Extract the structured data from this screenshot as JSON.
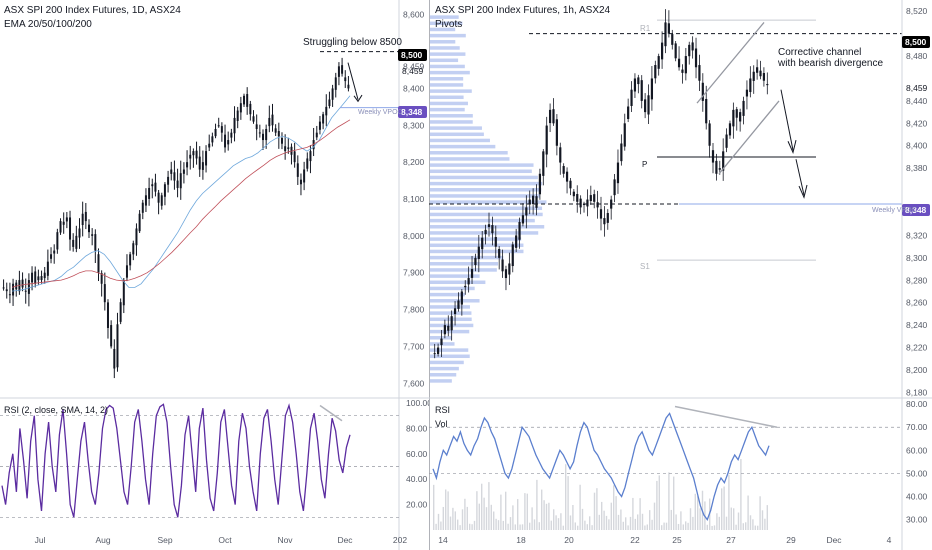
{
  "left_chart": {
    "title": "ASX SPI 200 Index Futures, 1D, ASX24",
    "indicator": "EMA 20/50/100/200",
    "annotation": "Struggling below 8500",
    "rsi_label": "RSI (2, close, SMA, 14, 2)",
    "price_badge": "8,500",
    "price_label_2": "8,459",
    "vpoc_label": "Weekly VPOC",
    "vpoc_badge": "8,348"
  },
  "right_chart": {
    "title": "ASX SPI 200 Index Futures, 1h, ASX24",
    "indicator": "Pivots",
    "annotation_line1": "Corrective channel",
    "annotation_line2": "with bearish divergence",
    "rsi_label": "RSI",
    "vol_label": "Vol",
    "price_badge": "8,500",
    "price_label_2": "8,459",
    "vpoc_label": "Weekly VPOC",
    "vpoc_badge": "8,348",
    "pivot_r1": "R1",
    "pivot_p": "P",
    "pivot_s1": "S1"
  },
  "colors": {
    "up": "#131722",
    "down": "#131722",
    "rsi_left": "#5b2ca0",
    "rsi_right": "#5b7fce",
    "ema_fast": "#6fa8dc",
    "ema_slow": "#c0505a",
    "volume_profile": "#8fa8e8",
    "badge_black": "#000000",
    "badge_purple": "#6a4fc0"
  },
  "chart_data": [
    {
      "type": "candlestick",
      "title": "ASX SPI 200 Index Futures, 1D, ASX24",
      "x_ticks": [
        "Jul",
        "Aug",
        "Sep",
        "Oct",
        "Nov",
        "Dec",
        "202"
      ],
      "y_ticks": [
        8600,
        8500,
        8459,
        8400,
        8348,
        8300,
        8200,
        8100,
        8000,
        7900,
        7800,
        7700,
        7600
      ],
      "ylim": [
        7560,
        8640
      ],
      "close_path": [
        7860,
        7850,
        7840,
        7870,
        7855,
        7880,
        7860,
        7850,
        7880,
        7900,
        7870,
        7890,
        7880,
        7900,
        7930,
        7950,
        7960,
        8010,
        8040,
        8030,
        8050,
        7990,
        7970,
        8000,
        8020,
        8060,
        8040,
        8010,
        8000,
        7960,
        7900,
        7870,
        7820,
        7750,
        7700,
        7640,
        7760,
        7820,
        7880,
        7920,
        7950,
        7980,
        8020,
        8060,
        8090,
        8110,
        8130,
        8140,
        8120,
        8090,
        8110,
        8140,
        8160,
        8180,
        8150,
        8130,
        8170,
        8180,
        8200,
        8220,
        8230,
        8210,
        8180,
        8200,
        8230,
        8250,
        8270,
        8290,
        8300,
        8280,
        8240,
        8260,
        8280,
        8320,
        8340,
        8360,
        8380,
        8350,
        8330,
        8310,
        8290,
        8280,
        8260,
        8290,
        8320,
        8300,
        8280,
        8270,
        8250,
        8230,
        8240,
        8220,
        8200,
        8160,
        8140,
        8180,
        8210,
        8230,
        8260,
        8280,
        8310,
        8330,
        8350,
        8370,
        8400,
        8430,
        8460,
        8440,
        8420,
        8400
      ],
      "ema_fast": [
        7850,
        7852,
        7855,
        7860,
        7865,
        7870,
        7875,
        7880,
        7890,
        7905,
        7915,
        7930,
        7945,
        7955,
        7960,
        7950,
        7930,
        7905,
        7880,
        7860,
        7860,
        7870,
        7890,
        7910,
        7935,
        7960,
        7985,
        8010,
        8040,
        8070,
        8095,
        8115,
        8130,
        8145,
        8160,
        8175,
        8190,
        8200,
        8210,
        8215,
        8225,
        8240,
        8255,
        8265,
        8270,
        8265,
        8255,
        8240,
        8230,
        8240,
        8260,
        8290,
        8320,
        8340,
        8360,
        8380
      ],
      "ema_slow": [
        7860,
        7865,
        7868,
        7870,
        7872,
        7874,
        7876,
        7878,
        7880,
        7885,
        7892,
        7900,
        7905,
        7905,
        7900,
        7893,
        7885,
        7880,
        7878,
        7880,
        7885,
        7892,
        7900,
        7912,
        7925,
        7940,
        7955,
        7972,
        7990,
        8008,
        8025,
        8045,
        8062,
        8078,
        8095,
        8110,
        8125,
        8140,
        8155,
        8168,
        8180,
        8192,
        8205,
        8215,
        8222,
        8228,
        8232,
        8236,
        8240,
        8248,
        8258,
        8270,
        8283,
        8295,
        8305,
        8315
      ],
      "rsi": [
        35,
        20,
        45,
        60,
        30,
        80,
        55,
        25,
        70,
        90,
        40,
        15,
        60,
        85,
        50,
        30,
        75,
        95,
        60,
        20,
        10,
        40,
        70,
        85,
        55,
        30,
        20,
        45,
        80,
        95,
        98,
        96,
        80,
        55,
        30,
        20,
        50,
        85,
        95,
        70,
        40,
        20,
        60,
        90,
        97,
        99,
        85,
        50,
        20,
        10,
        35,
        75,
        90,
        60,
        30,
        80,
        96,
        55,
        25,
        15,
        45,
        85,
        95,
        65,
        35,
        20,
        70,
        92,
        80,
        50,
        30,
        15,
        60,
        88,
        95,
        70,
        40,
        20,
        55,
        90,
        98,
        85,
        60,
        30,
        15,
        45,
        80,
        92,
        70,
        40,
        25,
        60,
        88,
        78,
        55,
        45,
        65,
        75
      ],
      "rsi_levels": [
        90,
        50,
        10
      ],
      "rsi_ticks": [
        100,
        80,
        60,
        40,
        20
      ]
    },
    {
      "type": "candlestick",
      "title": "ASX SPI 200 Index Futures, 1h, ASX24",
      "x_ticks": [
        "14",
        "18",
        "20",
        "22",
        "25",
        "27",
        "29",
        "Dec",
        "4"
      ],
      "y_ticks": [
        8520,
        8500,
        8480,
        8459,
        8440,
        8420,
        8400,
        8380,
        8348,
        8320,
        8300,
        8280,
        8260,
        8240,
        8220,
        8200,
        8180
      ],
      "ylim": [
        8175,
        8530
      ],
      "close_path": [
        8215,
        8220,
        8228,
        8240,
        8235,
        8248,
        8255,
        8262,
        8270,
        8275,
        8282,
        8290,
        8300,
        8310,
        8318,
        8325,
        8330,
        8322,
        8310,
        8300,
        8288,
        8282,
        8295,
        8312,
        8320,
        8332,
        8338,
        8345,
        8352,
        8348,
        8355,
        8375,
        8395,
        8418,
        8432,
        8420,
        8400,
        8385,
        8375,
        8368,
        8362,
        8355,
        8350,
        8345,
        8348,
        8352,
        8356,
        8350,
        8345,
        8335,
        8330,
        8340,
        8352,
        8370,
        8385,
        8402,
        8420,
        8435,
        8450,
        8460,
        8455,
        8440,
        8430,
        8445,
        8460,
        8472,
        8480,
        8492,
        8510,
        8500,
        8490,
        8478,
        8470,
        8465,
        8480,
        8490,
        8485,
        8470,
        8458,
        8440,
        8420,
        8400,
        8385,
        8375,
        8380,
        8395,
        8410,
        8420,
        8432,
        8425,
        8430,
        8440,
        8450,
        8460,
        8466,
        8470,
        8462,
        8458,
        8455
      ],
      "vpoc": 8348,
      "pivots": {
        "R1": 8512,
        "P": 8390,
        "S1": 8298
      },
      "rsi": [
        52,
        48,
        55,
        60,
        58,
        62,
        66,
        64,
        68,
        63,
        60,
        58,
        62,
        65,
        70,
        74,
        72,
        68,
        65,
        60,
        55,
        50,
        48,
        52,
        58,
        64,
        70,
        68,
        66,
        62,
        58,
        55,
        52,
        50,
        48,
        52,
        56,
        60,
        58,
        55,
        52,
        55,
        62,
        68,
        72,
        70,
        65,
        60,
        58,
        55,
        52,
        50,
        48,
        45,
        42,
        40,
        44,
        50,
        56,
        62,
        66,
        68,
        64,
        60,
        58,
        62,
        66,
        70,
        74,
        76,
        72,
        68,
        64,
        60,
        56,
        52,
        48,
        42,
        36,
        32,
        30,
        34,
        40,
        45,
        48,
        46,
        50,
        55,
        58,
        56,
        60,
        64,
        68,
        70,
        66,
        62,
        60,
        58,
        62
      ],
      "rsi_levels": [
        70,
        50
      ],
      "rsi_ticks": [
        80,
        70,
        60,
        50,
        40,
        30
      ]
    }
  ]
}
